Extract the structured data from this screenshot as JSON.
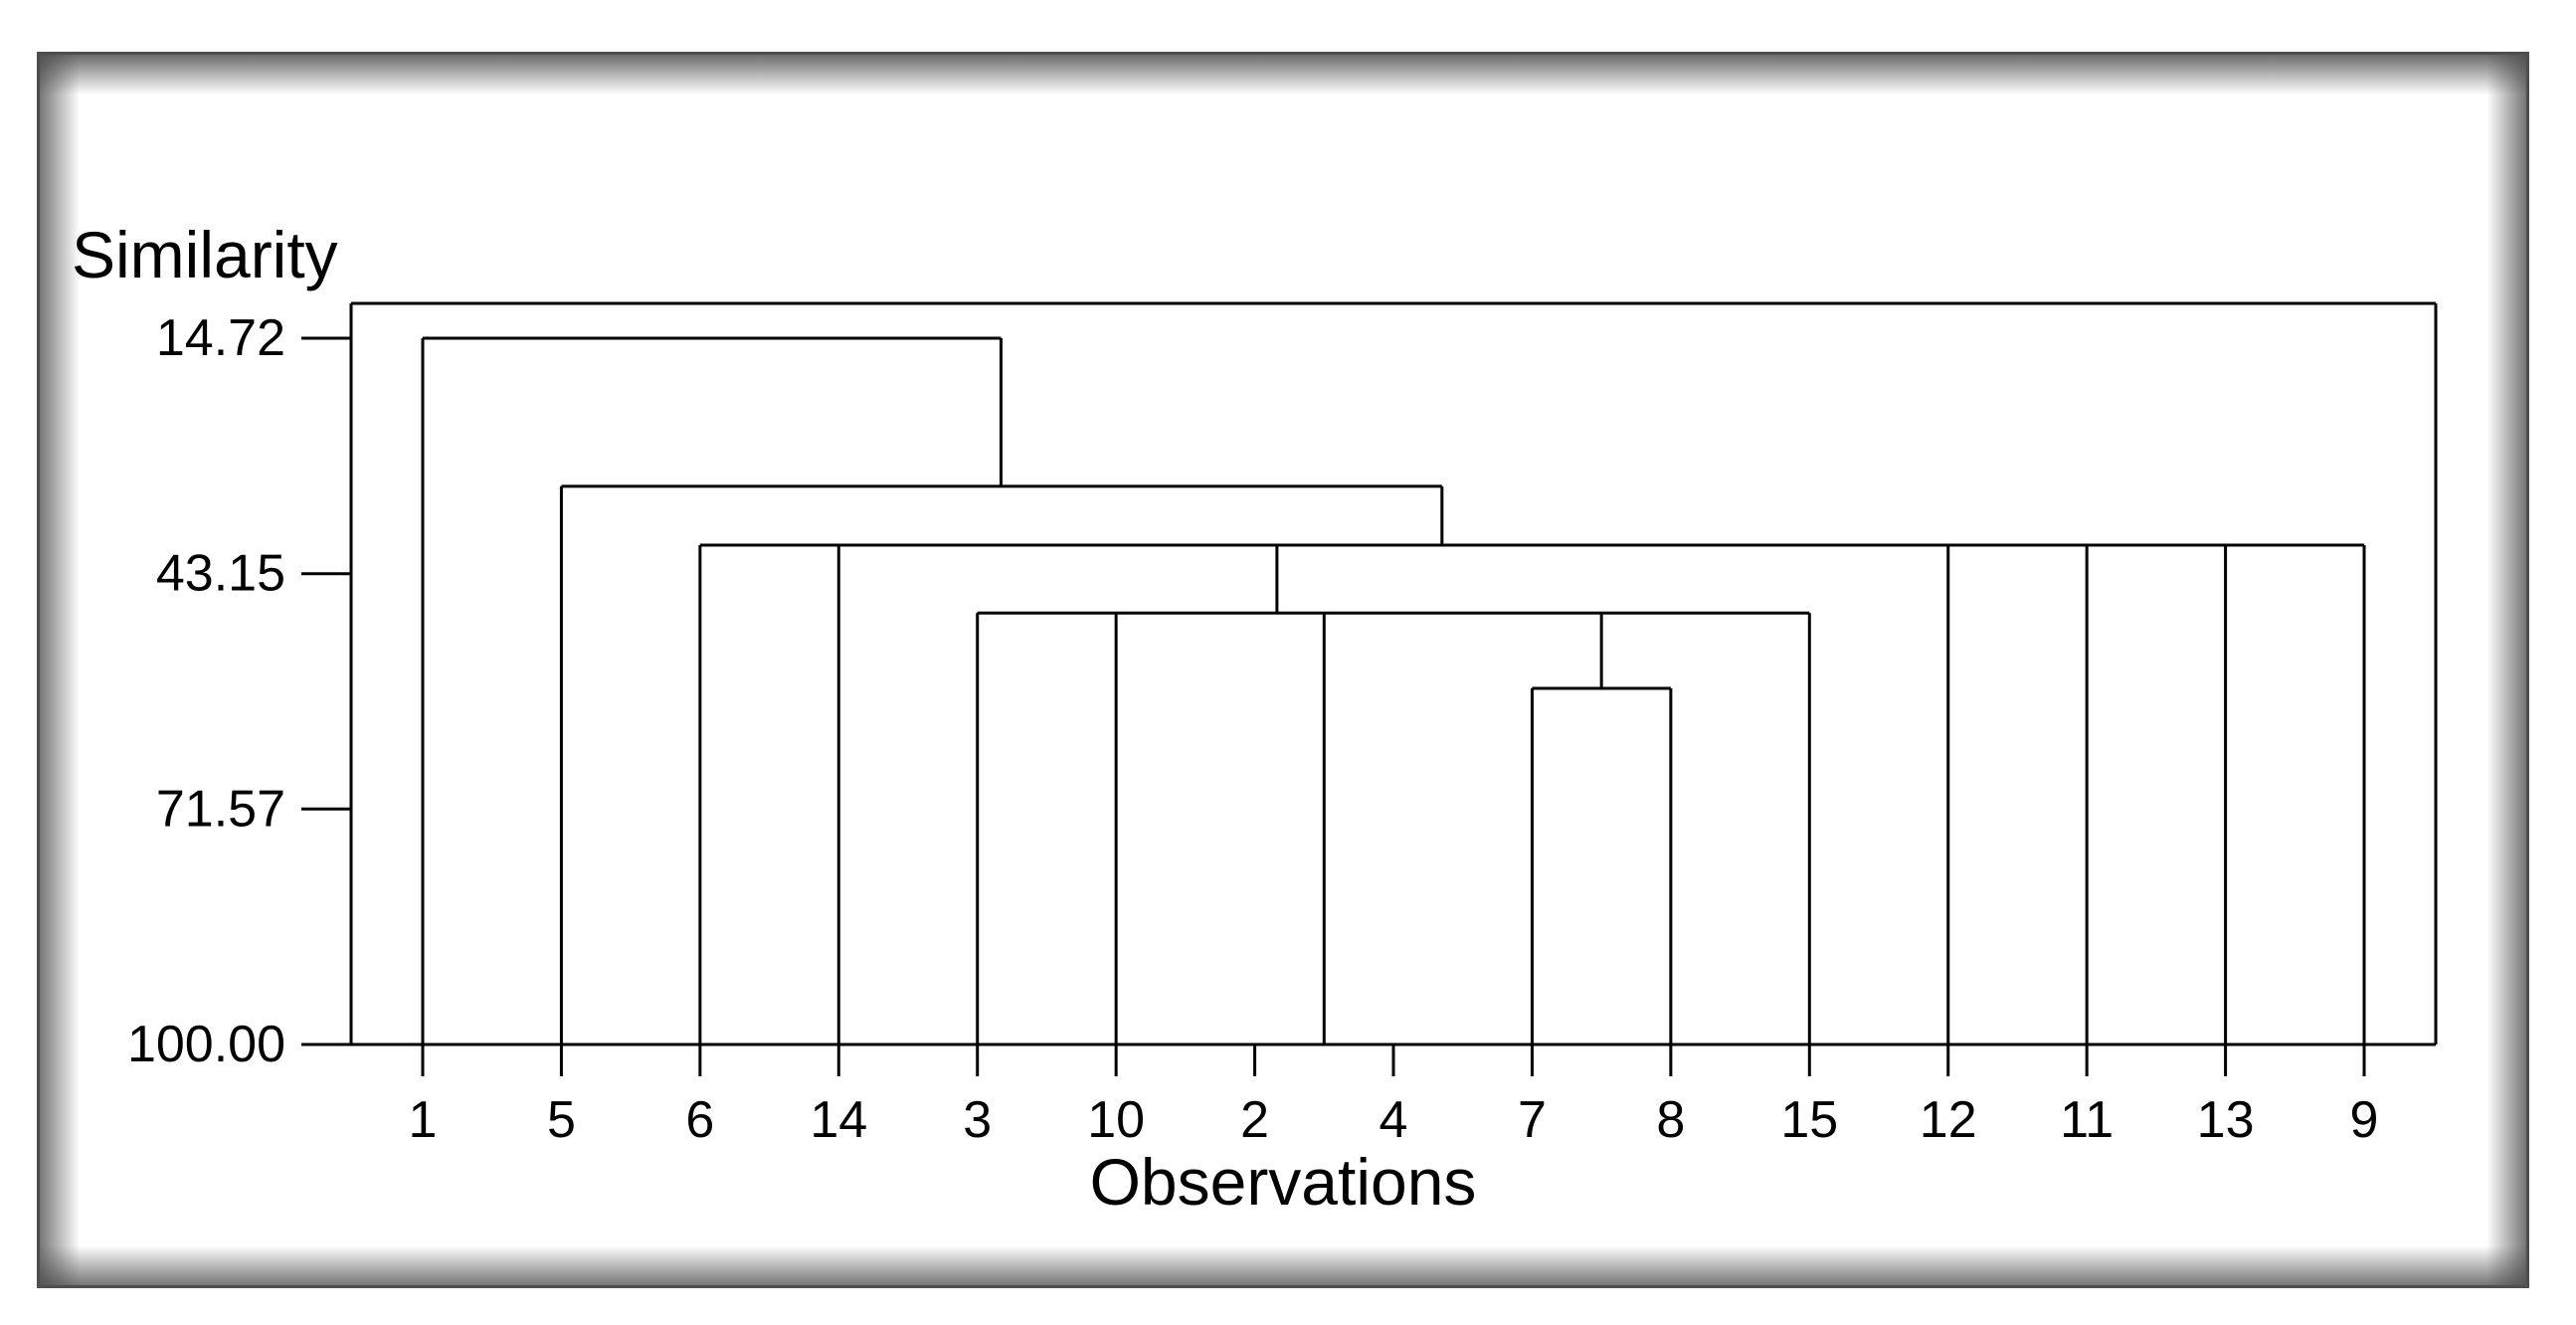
{
  "colors": {
    "line": "#000000",
    "background": "#ffffff",
    "frame_shadow": "#4e4e4e"
  },
  "chart_data": {
    "type": "dendrogram",
    "title": "",
    "ylabel": "Similarity",
    "xlabel": "Observations",
    "y_axis": {
      "tick_labels": [
        "14.72",
        "43.15",
        "71.57",
        "100.00"
      ],
      "top_value": 14.72,
      "bottom_value": 100.0,
      "orientation": "similarity decreases upward; 100.00 at baseline"
    },
    "leaf_order": [
      "1",
      "5",
      "6",
      "14",
      "3",
      "10",
      "2",
      "4",
      "7",
      "8",
      "15",
      "12",
      "11",
      "13",
      "9"
    ],
    "merges": [
      {
        "joins": [
          "2",
          "4"
        ],
        "similarity": 100.0
      },
      {
        "joins": [
          "7",
          "8"
        ],
        "similarity": 57.0
      },
      {
        "joins": [
          "3",
          "10",
          "2+4",
          "7+8",
          "15"
        ],
        "similarity": 47.9
      },
      {
        "joins": [
          "6",
          "14",
          "3+10+2+4+7+8+15",
          "12",
          "11",
          "13",
          "9"
        ],
        "similarity": 39.7
      },
      {
        "joins": [
          "5",
          "6+14+3+10+2+4+7+8+15+12+11+13+9"
        ],
        "similarity": 32.6
      },
      {
        "joins": [
          "1",
          "all-remaining"
        ],
        "similarity": 14.72
      }
    ],
    "render": {
      "comment_units": "horizontals: [similarity, from_leaf_slot, to_leaf_slot]; verticals: [leaf_slot, from_similarity, to_similarity]; slot 1 = leftmost leaf",
      "horizontals": [
        [
          14.72,
          1.0,
          5.17
        ],
        [
          32.6,
          2.0,
          8.35
        ],
        [
          39.7,
          3.0,
          15.0
        ],
        [
          47.9,
          5.0,
          11.0
        ],
        [
          57.0,
          9.0,
          10.0
        ]
      ],
      "verticals": [
        [
          1.0,
          14.72,
          100.0
        ],
        [
          5.17,
          14.72,
          32.6
        ],
        [
          2.0,
          32.6,
          100.0
        ],
        [
          8.35,
          32.6,
          39.7
        ],
        [
          3.0,
          39.7,
          100.0
        ],
        [
          4.0,
          39.7,
          100.0
        ],
        [
          7.16,
          39.7,
          47.9
        ],
        [
          12.0,
          39.7,
          100.0
        ],
        [
          13.0,
          39.7,
          100.0
        ],
        [
          14.0,
          39.7,
          100.0
        ],
        [
          15.0,
          39.7,
          100.0
        ],
        [
          5.0,
          47.9,
          100.0
        ],
        [
          6.0,
          47.9,
          100.0
        ],
        [
          7.5,
          47.9,
          100.0
        ],
        [
          9.5,
          47.9,
          57.0
        ],
        [
          11.0,
          47.9,
          100.0
        ],
        [
          9.0,
          57.0,
          100.0
        ],
        [
          10.0,
          57.0,
          100.0
        ]
      ]
    }
  }
}
